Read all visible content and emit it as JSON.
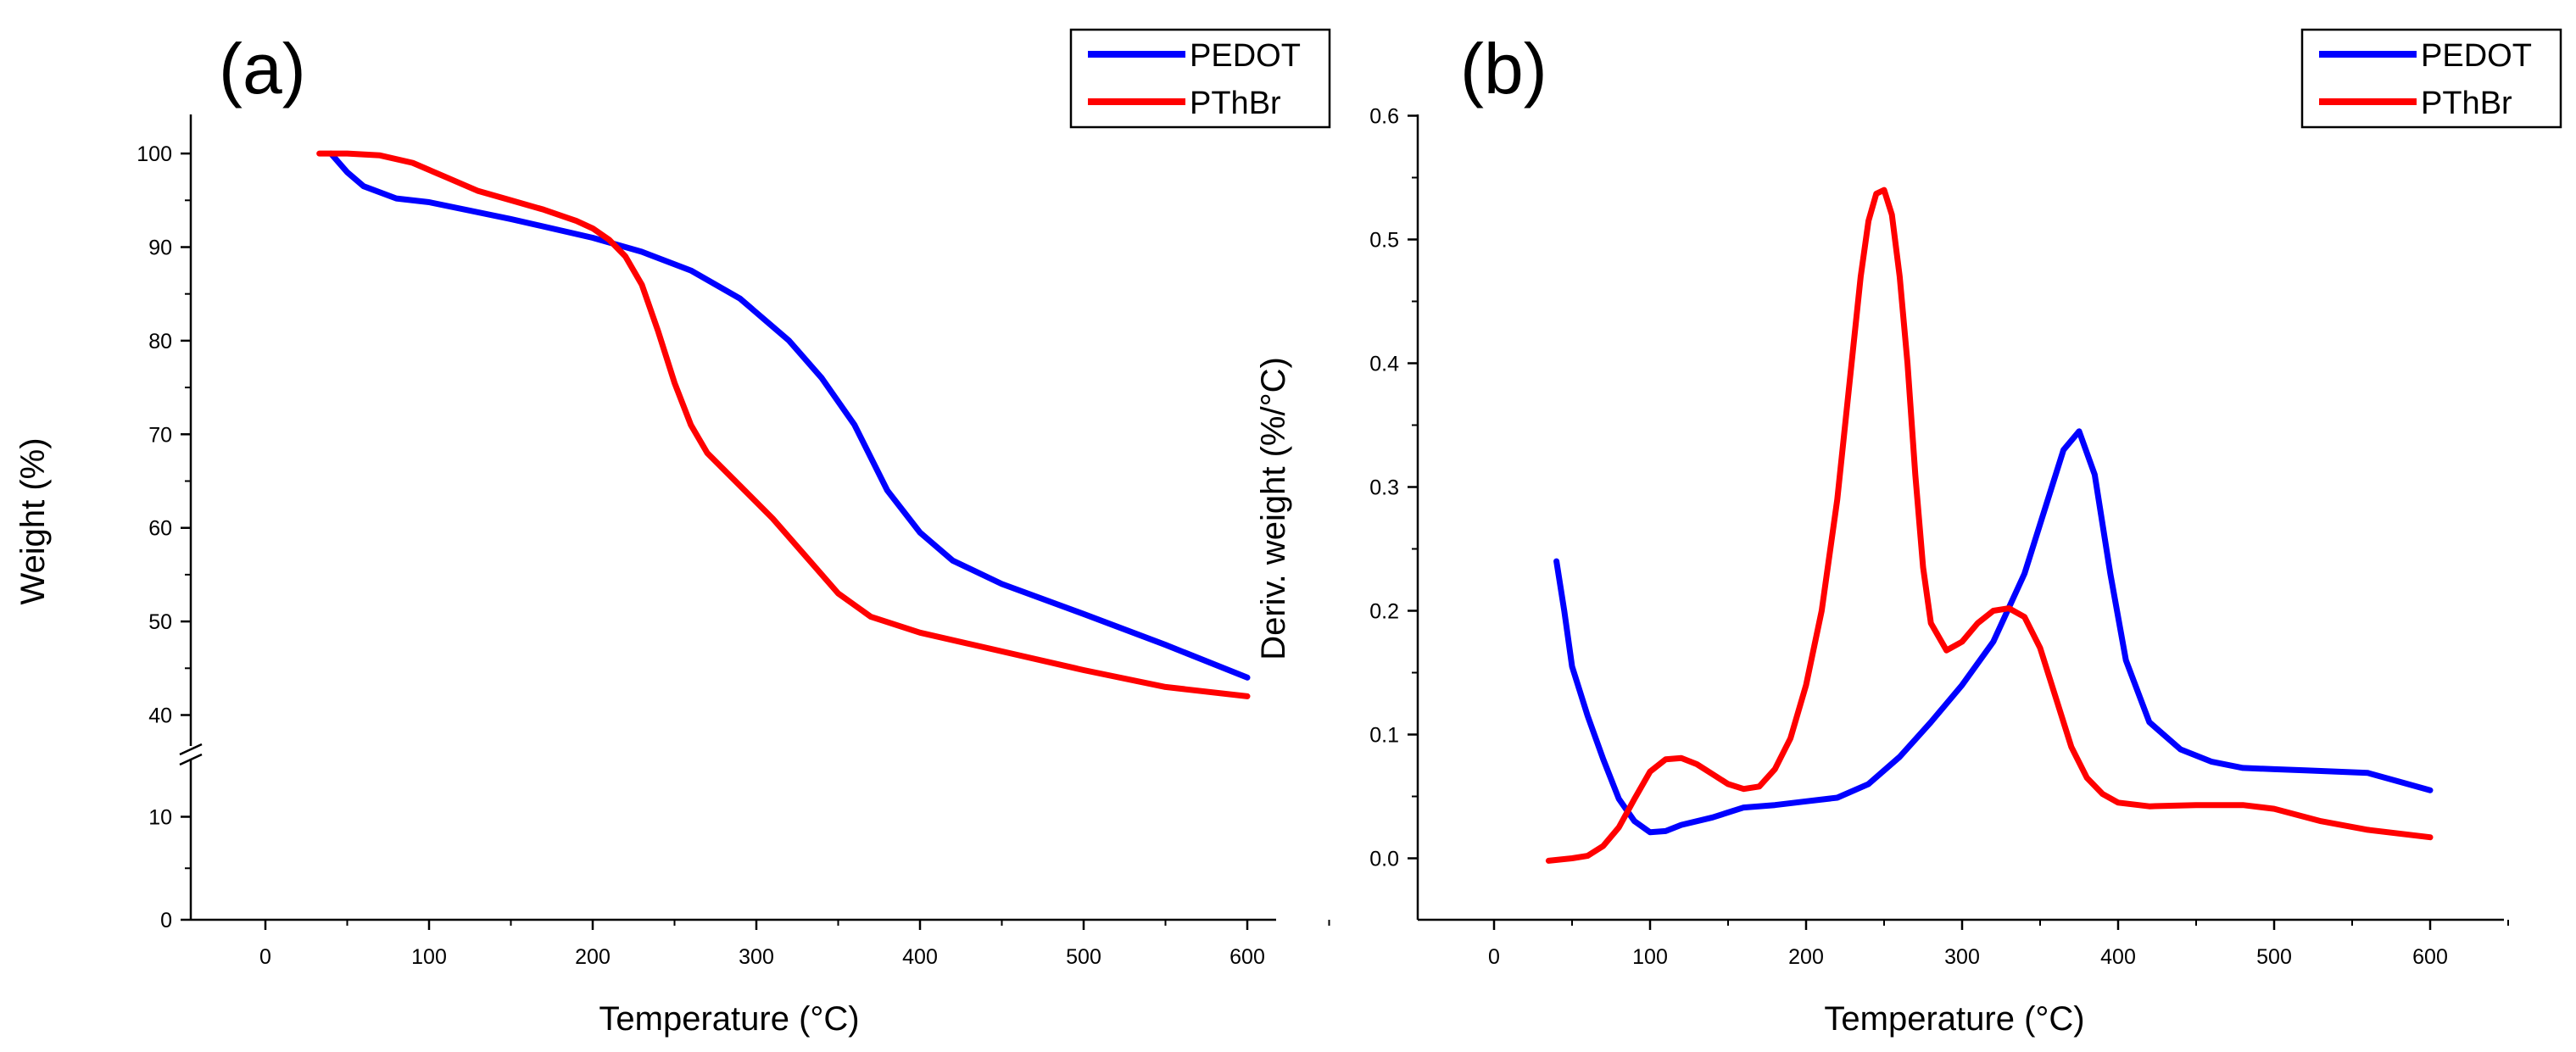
{
  "chart_data": [
    {
      "type": "line",
      "panel_label": "(a)",
      "xlabel": "Temperature (°C)",
      "ylabel": "Weight (%)",
      "xlim": [
        -50,
        650
      ],
      "xticks": [
        0,
        100,
        200,
        300,
        400,
        500,
        600
      ],
      "ylim": [
        0,
        105
      ],
      "ybreak": [
        15,
        35
      ],
      "yticks": [
        0,
        10,
        40,
        50,
        60,
        70,
        80,
        90,
        100
      ],
      "legend": "top-right",
      "series": [
        {
          "name": "PEDOT",
          "color": "#0000ff",
          "x": [
            40,
            50,
            60,
            80,
            100,
            150,
            200,
            230,
            260,
            290,
            320,
            340,
            360,
            380,
            400,
            420,
            450,
            500,
            550,
            600
          ],
          "y": [
            100,
            98,
            96.5,
            95.2,
            94.8,
            93,
            91,
            89.5,
            87.5,
            84.5,
            80,
            76,
            71,
            64,
            59.5,
            56.5,
            54,
            50.8,
            47.5,
            44
          ]
        },
        {
          "name": "PThBr",
          "color": "#ff0000",
          "x": [
            33,
            50,
            70,
            90,
            110,
            130,
            150,
            170,
            190,
            200,
            210,
            220,
            230,
            240,
            250,
            260,
            270,
            290,
            310,
            330,
            350,
            370,
            400,
            450,
            500,
            550,
            600
          ],
          "y": [
            100,
            100,
            99.8,
            99,
            97.5,
            96,
            95,
            94,
            92.8,
            92,
            90.8,
            89,
            86,
            81,
            75.5,
            71,
            68,
            64.5,
            61,
            57,
            53,
            50.5,
            48.8,
            46.8,
            44.8,
            43,
            42
          ]
        }
      ]
    },
    {
      "type": "line",
      "panel_label": "(b)",
      "xlabel": "Temperature (°C)",
      "ylabel": "Deriv. weight (%/°C)",
      "xlim": [
        -50,
        650
      ],
      "xticks": [
        0,
        100,
        200,
        300,
        400,
        500,
        600
      ],
      "ylim": [
        -0.05,
        0.6
      ],
      "yticks": [
        0.0,
        0.1,
        0.2,
        0.3,
        0.4,
        0.5,
        0.6
      ],
      "legend": "top-right",
      "series": [
        {
          "name": "PEDOT",
          "color": "#0000ff",
          "x": [
            40,
            45,
            50,
            60,
            70,
            80,
            90,
            100,
            110,
            120,
            140,
            160,
            180,
            200,
            220,
            240,
            260,
            280,
            300,
            320,
            340,
            355,
            365,
            375,
            385,
            395,
            405,
            420,
            440,
            460,
            480,
            500,
            520,
            540,
            560,
            580,
            600
          ],
          "y": [
            0.24,
            0.2,
            0.155,
            0.115,
            0.08,
            0.048,
            0.03,
            0.021,
            0.022,
            0.027,
            0.033,
            0.041,
            0.043,
            0.046,
            0.049,
            0.06,
            0.082,
            0.11,
            0.14,
            0.175,
            0.23,
            0.29,
            0.33,
            0.345,
            0.31,
            0.23,
            0.16,
            0.11,
            0.088,
            0.078,
            0.073,
            0.072,
            0.071,
            0.07,
            0.069,
            0.062,
            0.055
          ]
        },
        {
          "name": "PThBr",
          "color": "#ff0000",
          "x": [
            35,
            50,
            60,
            70,
            80,
            90,
            100,
            110,
            120,
            130,
            140,
            150,
            160,
            170,
            180,
            190,
            200,
            210,
            220,
            230,
            235,
            240,
            245,
            250,
            255,
            260,
            265,
            270,
            275,
            280,
            290,
            300,
            310,
            320,
            330,
            340,
            350,
            360,
            370,
            380,
            390,
            400,
            420,
            450,
            480,
            500,
            530,
            560,
            600
          ],
          "y": [
            -0.002,
            0.0,
            0.002,
            0.01,
            0.025,
            0.048,
            0.07,
            0.08,
            0.081,
            0.076,
            0.068,
            0.06,
            0.056,
            0.058,
            0.072,
            0.097,
            0.14,
            0.2,
            0.29,
            0.41,
            0.47,
            0.515,
            0.537,
            0.54,
            0.52,
            0.47,
            0.4,
            0.31,
            0.235,
            0.19,
            0.168,
            0.175,
            0.19,
            0.2,
            0.202,
            0.195,
            0.17,
            0.13,
            0.09,
            0.065,
            0.052,
            0.045,
            0.042,
            0.043,
            0.043,
            0.04,
            0.03,
            0.023,
            0.017
          ]
        }
      ]
    }
  ]
}
